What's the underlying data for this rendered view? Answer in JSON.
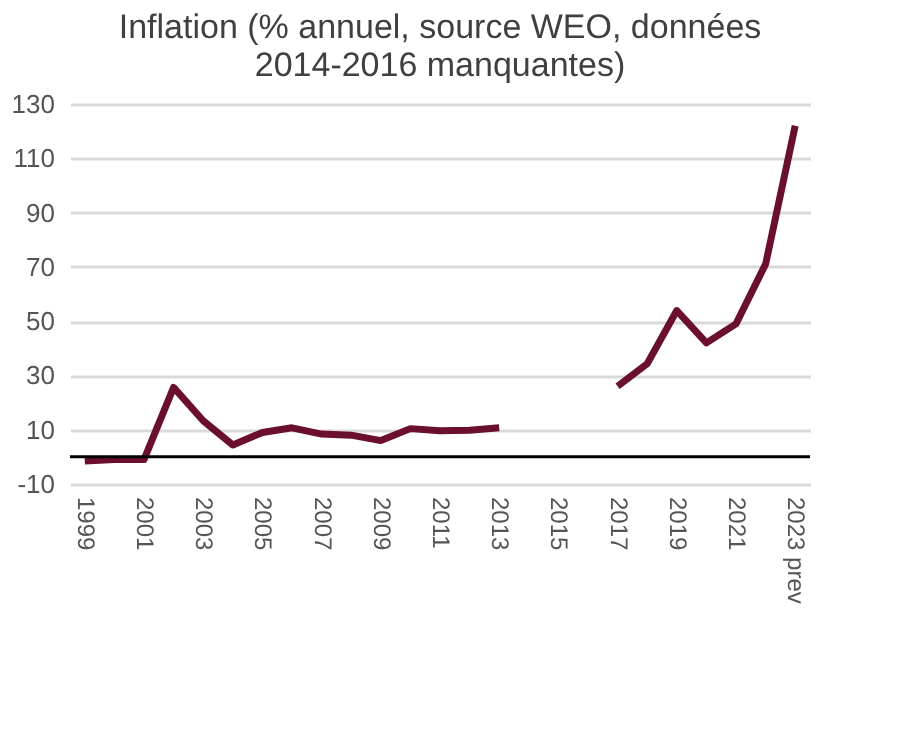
{
  "chart_data": {
    "type": "line",
    "title": "Inflation (% annuel, source WEO, données 2014-2016 manquantes)",
    "categories": [
      "1999",
      null,
      "2001",
      null,
      "2003",
      null,
      "2005",
      null,
      "2007",
      null,
      "2009",
      null,
      "2011",
      null,
      "2013",
      null,
      "2015",
      null,
      "2017",
      null,
      "2019",
      null,
      "2021",
      null,
      "2023 prev"
    ],
    "series": [
      {
        "color": "#6b0f2e",
        "values": [
          -1.5,
          -1,
          -1,
          25.6,
          13.3,
          4.4,
          9,
          10.7,
          8.4,
          8,
          6,
          10.4,
          9.6,
          9.8,
          10.7,
          null,
          null,
          null,
          26,
          34.3,
          53.9,
          42,
          49,
          71,
          122
        ]
      }
    ],
    "ylim": [
      -10,
      130
    ],
    "yticks": [
      -10,
      10,
      30,
      50,
      70,
      90,
      110,
      130
    ],
    "grid": "y",
    "marker": "none",
    "line_style": "solid",
    "ref_lines": [
      {
        "axis": "y",
        "value": 0,
        "color": "#000000"
      }
    ]
  }
}
